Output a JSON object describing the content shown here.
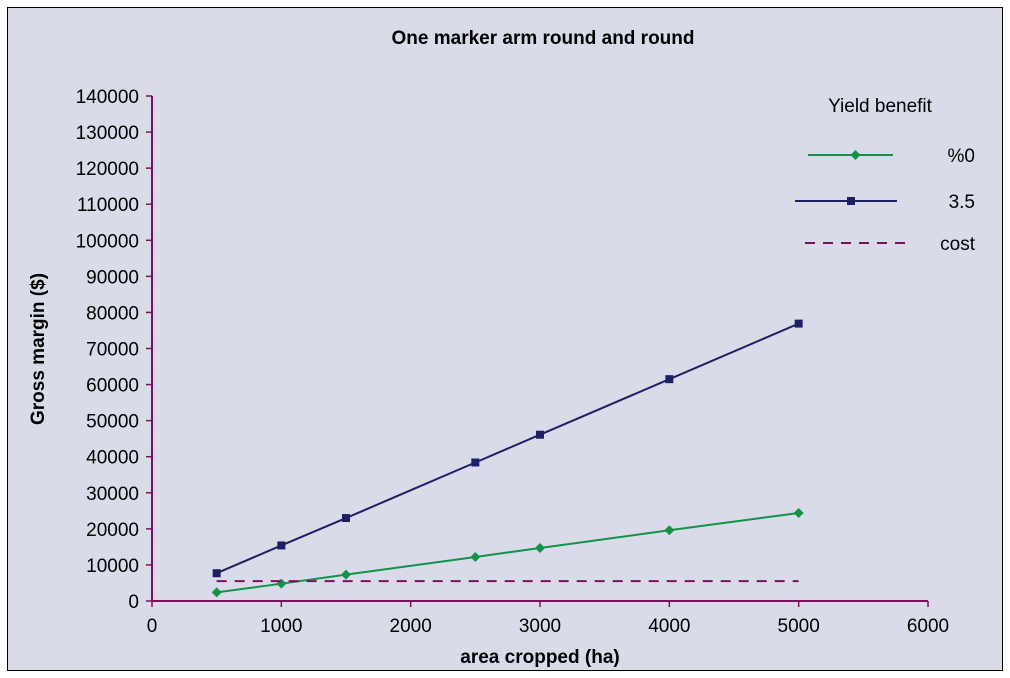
{
  "chart_data": {
    "type": "line",
    "title": "One marker arm round and round",
    "xlabel": "area cropped (ha)",
    "ylabel": "Gross margin ($)",
    "xlim": [
      0,
      6000
    ],
    "ylim": [
      0,
      140000
    ],
    "xticks": [
      0,
      1000,
      2000,
      3000,
      4000,
      5000,
      6000
    ],
    "yticks": [
      0,
      10000,
      20000,
      30000,
      40000,
      50000,
      60000,
      70000,
      80000,
      90000,
      100000,
      110000,
      120000,
      130000,
      140000
    ],
    "grid": false,
    "legend": {
      "title": "Yield benefit",
      "position": "top-right"
    },
    "series": [
      {
        "name": "%0",
        "color": "#15924a",
        "marker": "diamond",
        "x": [
          500,
          1000,
          1500,
          2500,
          3000,
          4000,
          5000
        ],
        "y": [
          2400,
          4800,
          7300,
          12200,
          14700,
          19600,
          24400
        ]
      },
      {
        "name": "3.5",
        "color": "#1f1f66",
        "marker": "square",
        "x": [
          500,
          1000,
          1500,
          2500,
          3000,
          4000,
          5000
        ],
        "y": [
          7700,
          15400,
          23000,
          38400,
          46100,
          61500,
          76900
        ]
      },
      {
        "name": "cost",
        "color": "#7b1060",
        "dashed": true,
        "x": [
          500,
          5000
        ],
        "y": [
          5500,
          5500
        ]
      }
    ]
  }
}
